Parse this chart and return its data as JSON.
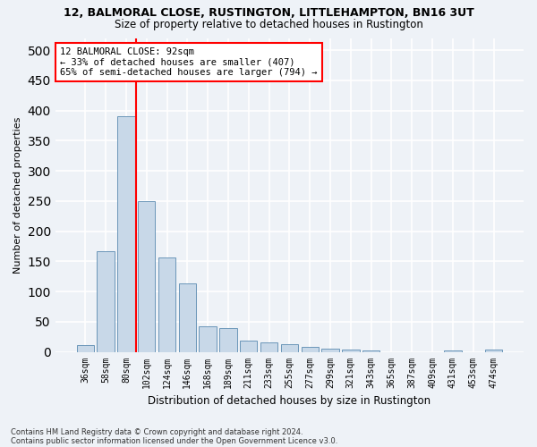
{
  "title1": "12, BALMORAL CLOSE, RUSTINGTON, LITTLEHAMPTON, BN16 3UT",
  "title2": "Size of property relative to detached houses in Rustington",
  "xlabel": "Distribution of detached houses by size in Rustington",
  "ylabel": "Number of detached properties",
  "footer1": "Contains HM Land Registry data © Crown copyright and database right 2024.",
  "footer2": "Contains public sector information licensed under the Open Government Licence v3.0.",
  "categories": [
    "36sqm",
    "58sqm",
    "80sqm",
    "102sqm",
    "124sqm",
    "146sqm",
    "168sqm",
    "189sqm",
    "211sqm",
    "233sqm",
    "255sqm",
    "277sqm",
    "299sqm",
    "321sqm",
    "343sqm",
    "365sqm",
    "387sqm",
    "409sqm",
    "431sqm",
    "453sqm",
    "474sqm"
  ],
  "values": [
    11,
    167,
    390,
    249,
    156,
    114,
    42,
    40,
    18,
    15,
    13,
    8,
    6,
    4,
    2,
    0,
    0,
    0,
    2,
    0,
    4
  ],
  "bar_color": "#c8d8e8",
  "bar_edge_color": "#5a8ab0",
  "vline_index": 2,
  "vline_color": "red",
  "annotation_title": "12 BALMORAL CLOSE: 92sqm",
  "annotation_line1": "← 33% of detached houses are smaller (407)",
  "annotation_line2": "65% of semi-detached houses are larger (794) →",
  "annotation_box_color": "white",
  "annotation_box_edge": "red",
  "ylim": [
    0,
    520
  ],
  "yticks": [
    0,
    50,
    100,
    150,
    200,
    250,
    300,
    350,
    400,
    450,
    500
  ],
  "bg_color": "#eef2f7",
  "grid_color": "white"
}
